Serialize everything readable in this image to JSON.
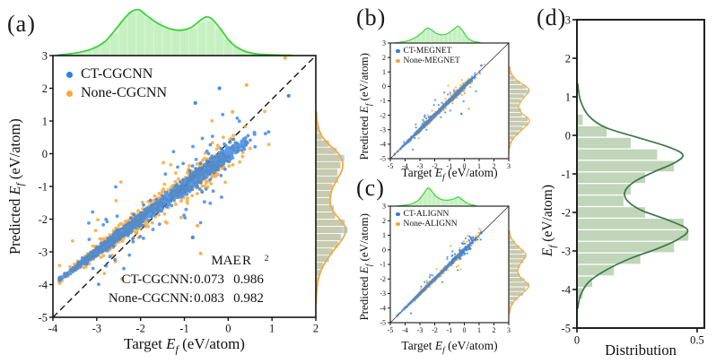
{
  "figure": {
    "background": "#ffffff"
  },
  "colors": {
    "blue": "#2a80e8",
    "lightblue": "#a9cff0",
    "orange": "#f6a83c",
    "green_line": "#3fd23f",
    "green_fill": "#b7ecb2",
    "tan_fill": "#c9c9a9",
    "sage_fill": "#b9d0b1",
    "darkgreen_line": "#3a7a45",
    "axis": "#151515",
    "diagonal": "#333333"
  },
  "chart_data": [
    {
      "id": "a",
      "type": "scatter",
      "panel_tag": "(a)",
      "xlabel_parts": [
        "Target ",
        "E",
        "f",
        " (eV/atom)"
      ],
      "ylabel_parts": [
        "Predicted ",
        "E",
        "f",
        " (eV/atom)"
      ],
      "xlim": [
        -4,
        2
      ],
      "ylim": [
        -5,
        3
      ],
      "xticks": [
        -4,
        -3,
        -2,
        -1,
        0,
        1,
        2
      ],
      "yticks": [
        3,
        2,
        1,
        0,
        -1,
        -2,
        -3,
        -4,
        -5
      ],
      "identity_line": "dashed",
      "grid": false,
      "legend_position": "upper-left",
      "series": [
        {
          "name": "CT-CGCNN",
          "color_key": "blue",
          "stat_label": "CT-CGCNN:",
          "mae": "0.073",
          "r2": "0.986"
        },
        {
          "name": "None-CGCNN",
          "color_key": "orange",
          "stat_label": "None-CGCNN:",
          "mae": "0.083",
          "r2": "0.982"
        }
      ],
      "stats_header": {
        "mae": "MAE",
        "r2_base": "R",
        "r2_sup": "2"
      },
      "marginal_top_kde": [
        [
          -3.9,
          0.01
        ],
        [
          -3.5,
          0.05
        ],
        [
          -3.1,
          0.14
        ],
        [
          -2.8,
          0.3
        ],
        [
          -2.5,
          0.62
        ],
        [
          -2.25,
          0.88
        ],
        [
          -2.05,
          0.95
        ],
        [
          -1.85,
          0.82
        ],
        [
          -1.6,
          0.66
        ],
        [
          -1.35,
          0.56
        ],
        [
          -1.1,
          0.52
        ],
        [
          -0.85,
          0.58
        ],
        [
          -0.65,
          0.72
        ],
        [
          -0.5,
          0.8
        ],
        [
          -0.35,
          0.74
        ],
        [
          -0.15,
          0.52
        ],
        [
          0.05,
          0.28
        ],
        [
          0.3,
          0.12
        ],
        [
          0.6,
          0.04
        ],
        [
          1.0,
          0.015
        ],
        [
          1.45,
          0.005
        ]
      ],
      "marginal_right_kde": [
        [
          1.3,
          0.01
        ],
        [
          0.9,
          0.04
        ],
        [
          0.55,
          0.12
        ],
        [
          0.25,
          0.3
        ],
        [
          0.0,
          0.48
        ],
        [
          -0.25,
          0.56
        ],
        [
          -0.5,
          0.55
        ],
        [
          -0.8,
          0.44
        ],
        [
          -1.1,
          0.34
        ],
        [
          -1.45,
          0.3
        ],
        [
          -1.75,
          0.36
        ],
        [
          -2.0,
          0.5
        ],
        [
          -2.25,
          0.62
        ],
        [
          -2.5,
          0.6
        ],
        [
          -2.8,
          0.46
        ],
        [
          -3.1,
          0.3
        ],
        [
          -3.45,
          0.15
        ],
        [
          -3.8,
          0.06
        ],
        [
          -4.2,
          0.02
        ],
        [
          -4.6,
          0.005
        ]
      ],
      "scatter_gen": {
        "seed": 11,
        "xmin": -3.85,
        "xmax": 1.45,
        "clusters": [
          {
            "c": -2.45,
            "s": 0.62,
            "w": 0.6
          },
          {
            "c": -0.62,
            "s": 0.48,
            "w": 0.4
          }
        ],
        "spread_base": 0.5,
        "spread_slope": 0.3,
        "blue": {
          "n": 2100,
          "sigma": 0.075
        },
        "orange": {
          "n": 700,
          "sigma": 0.16
        },
        "outlier_frac": 0.03,
        "outlier_min": 0.25,
        "outlier_scale": 0.6,
        "r": 1.9,
        "extra": [
          {
            "x": -0.2,
            "y": 2.0,
            "c": "blue"
          },
          {
            "x": 0.42,
            "y": 2.1,
            "c": "orange"
          },
          {
            "x": -0.75,
            "y": 1.55,
            "c": "blue"
          },
          {
            "x": 0.1,
            "y": 1.28,
            "c": "orange"
          },
          {
            "x": 1.3,
            "y": 2.93,
            "c": "orange"
          },
          {
            "x": -0.7,
            "y": -2.2,
            "c": "orange"
          },
          {
            "x": -0.63,
            "y": -3.05,
            "c": "orange"
          },
          {
            "x": -0.81,
            "y": -2.56,
            "c": "blue"
          },
          {
            "x": 1.38,
            "y": 1.77,
            "c": "blue"
          }
        ]
      }
    },
    {
      "id": "b",
      "type": "scatter",
      "panel_tag": "(b)",
      "xlabel_parts": [
        "Target ",
        "E",
        "f",
        " (eV/atom)"
      ],
      "ylabel_parts": [
        "Predicted ",
        "E",
        "f",
        " (eV/atom)"
      ],
      "xlim": [
        -5,
        3
      ],
      "ylim": [
        -5,
        3
      ],
      "xticks": [
        -5,
        -4,
        -3,
        -2,
        -1,
        0,
        1,
        2,
        3
      ],
      "yticks": [
        3,
        2,
        1,
        0,
        -1,
        -2,
        -3,
        -4,
        -5
      ],
      "identity_line": "solid",
      "grid": false,
      "legend_position": "upper-left",
      "series": [
        {
          "name": "CT-MEGNET",
          "color_key": "blue"
        },
        {
          "name": "None-MEGNET",
          "color_key": "orange"
        }
      ],
      "marginal_top_kde": [
        [
          -4.7,
          0.01
        ],
        [
          -4.2,
          0.05
        ],
        [
          -3.7,
          0.13
        ],
        [
          -3.2,
          0.3
        ],
        [
          -2.8,
          0.52
        ],
        [
          -2.5,
          0.7
        ],
        [
          -2.2,
          0.6
        ],
        [
          -1.9,
          0.45
        ],
        [
          -1.5,
          0.38
        ],
        [
          -1.1,
          0.45
        ],
        [
          -0.7,
          0.65
        ],
        [
          -0.4,
          0.78
        ],
        [
          -0.1,
          0.55
        ],
        [
          0.2,
          0.25
        ],
        [
          0.6,
          0.08
        ],
        [
          1.1,
          0.02
        ]
      ],
      "marginal_right_kde": [
        [
          1.4,
          0.02
        ],
        [
          0.9,
          0.08
        ],
        [
          0.4,
          0.25
        ],
        [
          0.0,
          0.52
        ],
        [
          -0.3,
          0.62
        ],
        [
          -0.7,
          0.48
        ],
        [
          -1.1,
          0.35
        ],
        [
          -1.5,
          0.3
        ],
        [
          -1.9,
          0.42
        ],
        [
          -2.3,
          0.62
        ],
        [
          -2.6,
          0.58
        ],
        [
          -3.0,
          0.4
        ],
        [
          -3.4,
          0.22
        ],
        [
          -3.8,
          0.09
        ],
        [
          -4.3,
          0.02
        ]
      ],
      "scatter_gen": {
        "seed": 22,
        "xmin": -4.7,
        "xmax": 1.5,
        "clusters": [
          {
            "c": -2.5,
            "s": 0.75,
            "w": 0.58
          },
          {
            "c": -0.55,
            "s": 0.55,
            "w": 0.42
          }
        ],
        "spread_base": 0.45,
        "spread_slope": 0.16,
        "blue": {
          "n": 1500,
          "sigma": 0.055
        },
        "orange": {
          "n": 520,
          "sigma": 0.12
        },
        "outlier_frac": 0.02,
        "outlier_min": 0.2,
        "outlier_scale": 0.45,
        "r": 1.1,
        "extra": [
          {
            "x": 0.3,
            "y": -1.55,
            "c": "orange"
          },
          {
            "x": -0.2,
            "y": -1.9,
            "c": "blue"
          },
          {
            "x": 1.15,
            "y": 1.45,
            "c": "blue"
          }
        ]
      }
    },
    {
      "id": "c",
      "type": "scatter",
      "panel_tag": "(c)",
      "xlabel_parts": [
        "Target ",
        "E",
        "f",
        " (eV/atom)"
      ],
      "ylabel_parts": [
        "Predicted ",
        "E",
        "f",
        " (eV/atom)"
      ],
      "xlim": [
        -5,
        3
      ],
      "ylim": [
        -5,
        3
      ],
      "xticks": [
        -5,
        -4,
        -3,
        -2,
        -1,
        0,
        1,
        2,
        3
      ],
      "yticks": [
        3,
        2,
        1,
        0,
        -1,
        -2,
        -3,
        -4,
        -5
      ],
      "identity_line": "solid",
      "grid": false,
      "legend_position": "upper-left",
      "series": [
        {
          "name": "CT-ALIGNN",
          "color_key": "blue"
        },
        {
          "name": "None-ALIGNN",
          "color_key": "orange"
        }
      ],
      "marginal_top_kde": [
        [
          -4.6,
          0.01
        ],
        [
          -4.1,
          0.04
        ],
        [
          -3.6,
          0.1
        ],
        [
          -3.1,
          0.28
        ],
        [
          -2.7,
          0.62
        ],
        [
          -2.45,
          0.85
        ],
        [
          -2.2,
          0.7
        ],
        [
          -1.9,
          0.45
        ],
        [
          -1.5,
          0.3
        ],
        [
          -1.1,
          0.28
        ],
        [
          -0.7,
          0.34
        ],
        [
          -0.4,
          0.42
        ],
        [
          -0.1,
          0.28
        ],
        [
          0.3,
          0.1
        ],
        [
          0.8,
          0.02
        ]
      ],
      "marginal_right_kde": [
        [
          1.3,
          0.02
        ],
        [
          0.8,
          0.08
        ],
        [
          0.3,
          0.25
        ],
        [
          -0.1,
          0.45
        ],
        [
          -0.4,
          0.52
        ],
        [
          -0.8,
          0.4
        ],
        [
          -1.2,
          0.3
        ],
        [
          -1.6,
          0.28
        ],
        [
          -2.0,
          0.4
        ],
        [
          -2.4,
          0.6
        ],
        [
          -2.7,
          0.55
        ],
        [
          -3.1,
          0.35
        ],
        [
          -3.5,
          0.18
        ],
        [
          -3.9,
          0.07
        ],
        [
          -4.4,
          0.02
        ]
      ],
      "scatter_gen": {
        "seed": 33,
        "xmin": -4.55,
        "xmax": 1.15,
        "clusters": [
          {
            "c": -2.5,
            "s": 0.7,
            "w": 0.62
          },
          {
            "c": -0.6,
            "s": 0.5,
            "w": 0.38
          }
        ],
        "spread_base": 0.4,
        "spread_slope": 0.15,
        "blue": {
          "n": 1150,
          "sigma": 0.045
        },
        "orange": {
          "n": 400,
          "sigma": 0.1
        },
        "outlier_frac": 0.015,
        "outlier_min": 0.2,
        "outlier_scale": 0.4,
        "r": 1.1,
        "cluster2": {
          "n_blue": 45,
          "n_orange": 28,
          "cx": 0.2,
          "sx": 0.5,
          "sy": 0.27,
          "xmin": -0.8,
          "xmax": 1.2
        },
        "extra": []
      }
    },
    {
      "id": "d",
      "type": "histogram",
      "panel_tag": "(d)",
      "xlabel": "Distribution",
      "ylabel_parts": [
        "",
        "E",
        "f",
        " (eV/atom)"
      ],
      "xlim": [
        0,
        0.53
      ],
      "ylim": [
        -5,
        3
      ],
      "xticks": [
        0,
        0.5
      ],
      "yticks": [
        3,
        2,
        1,
        0,
        -1,
        -2,
        -3,
        -4,
        -5
      ],
      "grid": false,
      "orientation": "horizontal",
      "bin_top": 0.55,
      "bin_step": 0.3,
      "bin_values": [
        0.02,
        0.12,
        0.22,
        0.33,
        0.4,
        0.28,
        0.22,
        0.19,
        0.28,
        0.44,
        0.46,
        0.4,
        0.26,
        0.15,
        0.06,
        0.02
      ],
      "kde": [
        [
          1.35,
          0.003
        ],
        [
          0.9,
          0.015
        ],
        [
          0.5,
          0.05
        ],
        [
          0.2,
          0.12
        ],
        [
          -0.05,
          0.25
        ],
        [
          -0.3,
          0.38
        ],
        [
          -0.5,
          0.44
        ],
        [
          -0.7,
          0.41
        ],
        [
          -0.95,
          0.32
        ],
        [
          -1.2,
          0.24
        ],
        [
          -1.45,
          0.2
        ],
        [
          -1.7,
          0.21
        ],
        [
          -1.95,
          0.27
        ],
        [
          -2.2,
          0.38
        ],
        [
          -2.45,
          0.46
        ],
        [
          -2.7,
          0.42
        ],
        [
          -2.95,
          0.33
        ],
        [
          -3.2,
          0.22
        ],
        [
          -3.5,
          0.12
        ],
        [
          -3.8,
          0.05
        ],
        [
          -4.15,
          0.015
        ],
        [
          -4.5,
          0.003
        ]
      ]
    }
  ]
}
